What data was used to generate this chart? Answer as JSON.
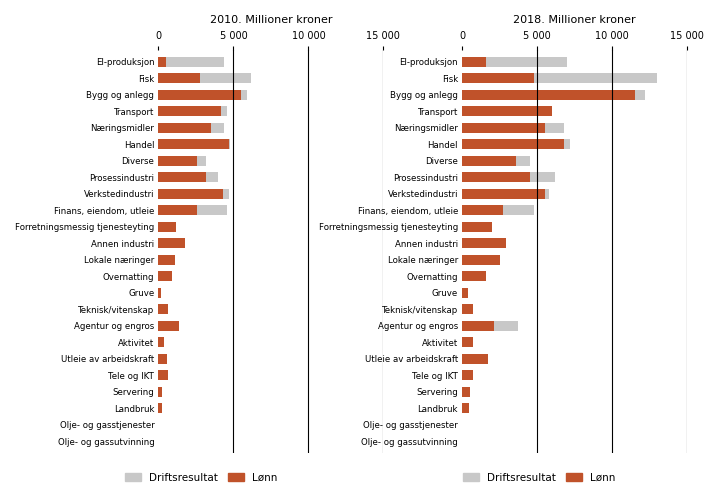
{
  "categories": [
    "El-produksjon",
    "Fisk",
    "Bygg og anlegg",
    "Transport",
    "Næringsmidler",
    "Handel",
    "Diverse",
    "Prosessindustri",
    "Verkstedindustri",
    "Finans, eiendom, utleie",
    "Forretningsmessig tjenesteyting",
    "Annen industri",
    "Lokale næringer",
    "Overnatting",
    "Gruve",
    "Teknisk/vitenskap",
    "Agentur og engros",
    "Aktivitet",
    "Utleie av arbeidskraft",
    "Tele og IKT",
    "Servering",
    "Landbruk",
    "Olje- og gasstjenester",
    "Olje- og gassutvinning"
  ],
  "data_2010": {
    "total": [
      4400,
      6200,
      5900,
      4600,
      4400,
      4800,
      3200,
      4000,
      4700,
      4600,
      1200,
      1800,
      1100,
      900,
      150,
      650,
      1400,
      350,
      600,
      650,
      220,
      220,
      0,
      0
    ],
    "lonn": [
      500,
      2800,
      5500,
      4200,
      3500,
      4700,
      2600,
      3200,
      4300,
      2600,
      1200,
      1800,
      1100,
      900,
      150,
      650,
      1400,
      350,
      600,
      650,
      220,
      220,
      0,
      0
    ]
  },
  "data_2018": {
    "total": [
      7000,
      13000,
      12200,
      6000,
      6800,
      7200,
      4500,
      6200,
      5800,
      4800,
      2000,
      2900,
      2500,
      1600,
      400,
      700,
      3700,
      700,
      1700,
      750,
      500,
      450,
      0,
      0
    ],
    "lonn": [
      1600,
      4800,
      11500,
      6000,
      5500,
      6800,
      3600,
      4500,
      5500,
      2700,
      2000,
      2900,
      2500,
      1600,
      400,
      700,
      2100,
      700,
      1700,
      750,
      500,
      450,
      0,
      0
    ]
  },
  "title_left": "2010. Millioner kroner",
  "title_right": "2018. Millioner kroner",
  "xlim": [
    0,
    15000
  ],
  "xticks": [
    0,
    5000,
    10000,
    15000
  ],
  "xticklabels": [
    "0",
    "5 000",
    "10 000",
    "15 000"
  ],
  "color_driftsresultat": "#c8c8c8",
  "color_lonn": "#c0522a",
  "background_color": "#ffffff",
  "legend_labels": [
    "Driftsresultat",
    "Lønn"
  ],
  "vlines": [
    5000,
    10000,
    15000
  ]
}
